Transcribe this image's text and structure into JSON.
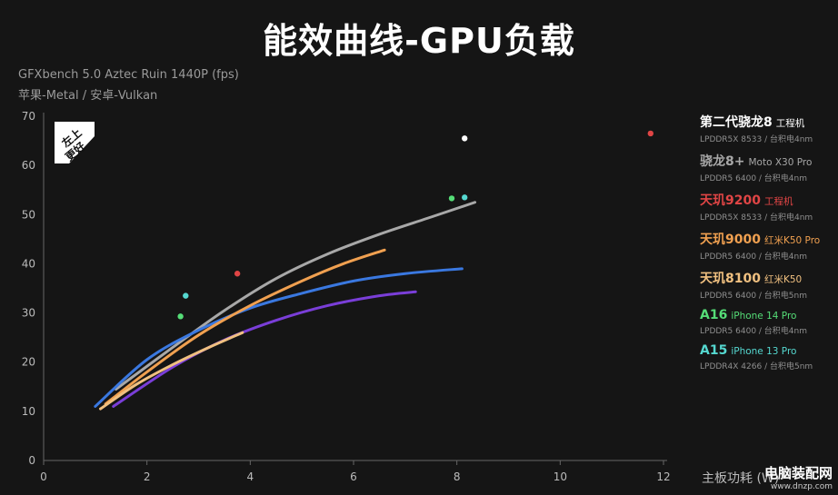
{
  "title": "能效曲线-GPU负载",
  "subtitle_1": "GFXbench 5.0 Aztec Ruin 1440P (fps)",
  "subtitle_2": "苹果-Metal / 安卓-Vulkan",
  "badge_text": [
    "左上",
    "更好"
  ],
  "x_axis_label": "主板功耗 (W)",
  "watermark": {
    "line1": "电脑装配网",
    "line2": "www.dnzp.com"
  },
  "chart_data": {
    "type": "line",
    "xlim": [
      0,
      12
    ],
    "ylim": [
      0,
      70
    ],
    "xticks": [
      0,
      2,
      4,
      6,
      8,
      10,
      12
    ],
    "yticks": [
      0,
      10,
      20,
      30,
      40,
      50,
      60,
      70
    ],
    "xlabel": "主板功耗 (W)",
    "ylabel": "",
    "grid": false,
    "legend_position": "right",
    "series": [
      {
        "name": "第二代骁龙8",
        "model": "工程机",
        "memory": "LPDDR5X 8533 / 台积电4nm",
        "color": "#ffffff",
        "curve": [],
        "points": [
          [
            8.15,
            65.5
          ]
        ]
      },
      {
        "name": "骁龙8+",
        "model": "Moto X30 Pro",
        "memory": "LPDDR5 6400 / 台积电4nm",
        "color": "#a8a8a8",
        "curve": [
          [
            1.4,
            14.5
          ],
          [
            2.5,
            23
          ],
          [
            3.5,
            30.5
          ],
          [
            4.5,
            37
          ],
          [
            5.5,
            42
          ],
          [
            6.5,
            46
          ],
          [
            7.5,
            49.5
          ],
          [
            8.35,
            52.5
          ]
        ],
        "points": []
      },
      {
        "name": "天玑9200",
        "model": "工程机",
        "memory": "LPDDR5X 8533 / 台积电4nm",
        "color": "#e04545",
        "curve": [],
        "points": [
          [
            3.75,
            38
          ],
          [
            11.75,
            66.5
          ]
        ]
      },
      {
        "name": "天玑9000",
        "model": "红米K50 Pro",
        "memory": "LPDDR5 6400 / 台积电4nm",
        "color": "#f0a050",
        "curve": [
          [
            1.2,
            11.5
          ],
          [
            2,
            18
          ],
          [
            3,
            25.5
          ],
          [
            4,
            31.5
          ],
          [
            5,
            36.5
          ],
          [
            5.8,
            40
          ],
          [
            6.6,
            42.8
          ]
        ],
        "points": []
      },
      {
        "name": "天玑8100",
        "model": "红米K50",
        "memory": "LPDDR5 6400 / 台积电5nm",
        "color": "#f0c080",
        "curve": [
          [
            1.1,
            10.5
          ],
          [
            1.8,
            15.5
          ],
          [
            2.5,
            19.5
          ],
          [
            3.2,
            23
          ],
          [
            3.85,
            26
          ]
        ],
        "points": []
      },
      {
        "name": "A16",
        "model": "iPhone 14 Pro",
        "memory": "LPDDR5 6400 / 台积电4nm",
        "color": "#55dd77",
        "curve": [],
        "points": [
          [
            2.65,
            29.3
          ],
          [
            7.9,
            53.3
          ]
        ]
      },
      {
        "name": "A15",
        "model": "iPhone 13 Pro",
        "memory": "LPDDR4X 4266 / 台积电5nm",
        "color": "#55d8d0",
        "curve": [],
        "points": [
          [
            2.75,
            33.5
          ],
          [
            8.15,
            53.5
          ]
        ]
      },
      {
        "name": "",
        "model": "",
        "memory": "",
        "color": "#3a78e0",
        "curve": [
          [
            1,
            11
          ],
          [
            2,
            20.5
          ],
          [
            3,
            26.5
          ],
          [
            4,
            31
          ],
          [
            5,
            34
          ],
          [
            6,
            36.5
          ],
          [
            7,
            38
          ],
          [
            8.1,
            39
          ]
        ],
        "points": []
      },
      {
        "name": "",
        "model": "",
        "memory": "",
        "color": "#7a3ed8",
        "curve": [
          [
            1.35,
            11
          ],
          [
            2.5,
            19
          ],
          [
            3.5,
            24.5
          ],
          [
            4.5,
            28.5
          ],
          [
            5.5,
            31.5
          ],
          [
            6.5,
            33.5
          ],
          [
            7.2,
            34.3
          ]
        ],
        "points": []
      }
    ]
  }
}
